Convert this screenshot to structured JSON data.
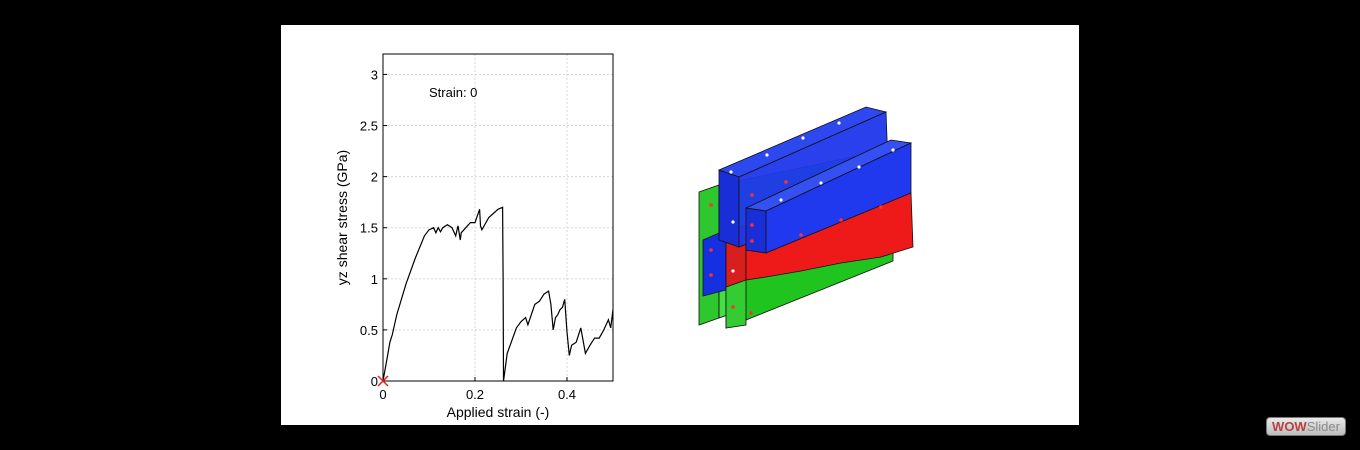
{
  "chart_data": {
    "type": "line",
    "xlabel": "Applied strain (-)",
    "ylabel": "yz shear stress (GPa)",
    "xlim": [
      0,
      0.5
    ],
    "ylim": [
      0,
      3.2
    ],
    "xticks": [
      0,
      0.2,
      0.4
    ],
    "yticks": [
      0,
      0.5,
      1,
      1.5,
      2,
      2.5,
      3
    ],
    "grid": true,
    "annotation": "Strain: 0",
    "marker": {
      "x": 0,
      "y": 0,
      "symbol": "x",
      "color": "#e02020"
    },
    "series": [
      {
        "x": [
          0,
          0.01,
          0.015,
          0.02,
          0.03,
          0.05,
          0.07,
          0.09,
          0.1,
          0.11,
          0.115,
          0.12,
          0.125,
          0.13,
          0.14,
          0.15,
          0.158,
          0.163,
          0.168,
          0.17,
          0.18,
          0.19,
          0.2,
          0.21,
          0.212,
          0.215,
          0.23,
          0.25,
          0.26,
          0.261,
          0.262,
          0.265,
          0.27,
          0.29,
          0.3,
          0.31,
          0.315,
          0.33,
          0.34,
          0.35,
          0.36,
          0.365,
          0.37,
          0.375,
          0.38,
          0.385,
          0.39,
          0.395,
          0.4,
          0.405,
          0.41,
          0.42,
          0.43,
          0.44,
          0.45,
          0.46,
          0.47,
          0.48,
          0.49,
          0.495,
          0.5
        ],
        "y": [
          0,
          0.25,
          0.38,
          0.45,
          0.65,
          0.95,
          1.2,
          1.42,
          1.48,
          1.5,
          1.45,
          1.5,
          1.46,
          1.5,
          1.53,
          1.5,
          1.42,
          1.52,
          1.38,
          1.45,
          1.5,
          1.55,
          1.55,
          1.68,
          1.52,
          1.48,
          1.6,
          1.68,
          1.7,
          1.0,
          0.0,
          0.1,
          0.27,
          0.52,
          0.58,
          0.62,
          0.55,
          0.75,
          0.78,
          0.85,
          0.88,
          0.75,
          0.5,
          0.62,
          0.65,
          0.7,
          0.72,
          0.8,
          0.48,
          0.25,
          0.35,
          0.38,
          0.52,
          0.27,
          0.35,
          0.42,
          0.42,
          0.5,
          0.6,
          0.52,
          0.7
        ],
        "color": "#000000"
      }
    ]
  },
  "watermark": {
    "part1": "WOW",
    "part2": "Slider"
  }
}
